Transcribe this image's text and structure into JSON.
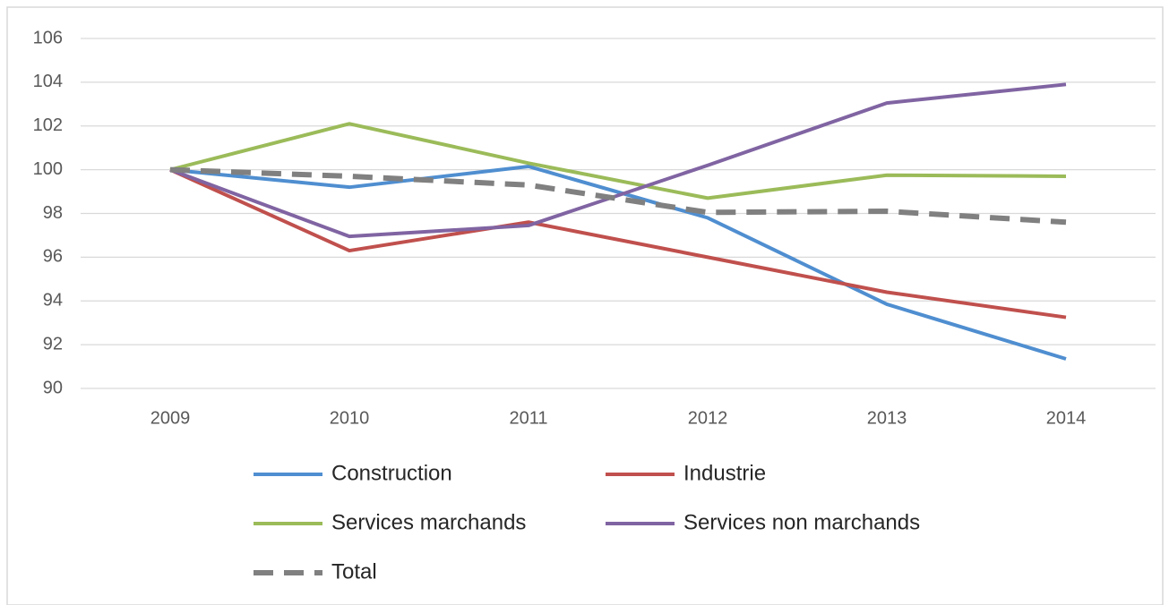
{
  "chart_data": {
    "type": "line",
    "categories": [
      "2009",
      "2010",
      "2011",
      "2012",
      "2013",
      "2014"
    ],
    "series": [
      {
        "name": "Construction",
        "color": "#4f8ed0",
        "values": [
          100,
          99.2,
          100.15,
          97.8,
          93.85,
          91.35
        ]
      },
      {
        "name": "Industrie",
        "color": "#c0504d",
        "values": [
          100,
          96.3,
          97.6,
          96.0,
          94.4,
          93.25
        ]
      },
      {
        "name": "Services marchands",
        "color": "#9bbb59",
        "values": [
          100,
          102.1,
          100.3,
          98.7,
          99.75,
          99.7
        ]
      },
      {
        "name": "Services non marchands",
        "color": "#8064a2",
        "values": [
          100,
          96.95,
          97.45,
          100.2,
          103.05,
          103.9
        ]
      },
      {
        "name": "Total",
        "color": "#808080",
        "dashed": true,
        "values": [
          100,
          99.7,
          99.3,
          98.05,
          98.1,
          97.6
        ]
      }
    ],
    "ylim": [
      90,
      106
    ],
    "yticks": [
      90,
      92,
      94,
      96,
      98,
      100,
      102,
      104,
      106
    ],
    "grid": true
  }
}
